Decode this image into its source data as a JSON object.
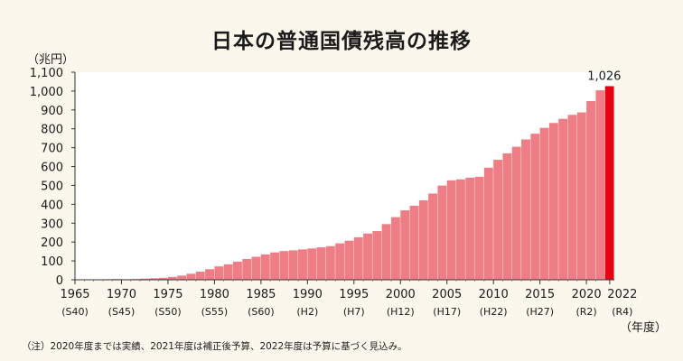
{
  "title": "日本の普通国債残高の推移",
  "unit_label": "（兆円）",
  "note": "（注）2020年度までは実績、2021年度は補正後予算、2022年度は予算に基づく見込み。",
  "colors": {
    "bar": "#ef7d86",
    "highlight": "#e50012",
    "background": "#fbf7ec",
    "plot": "#ffffff"
  },
  "chart_data": {
    "type": "bar",
    "title": "日本の普通国債残高の推移",
    "ylabel": "（兆円）",
    "xlabel": "（年度）",
    "ylim": [
      0,
      1100
    ],
    "ytick_labels": [
      "0",
      "100",
      "200",
      "300",
      "400",
      "500",
      "600",
      "700",
      "800",
      "900",
      "1,000",
      "1,100"
    ],
    "xtick_years": [
      "1965",
      "1970",
      "1975",
      "1980",
      "1985",
      "1990",
      "1995",
      "2000",
      "2005",
      "2010",
      "2015",
      "2020",
      "2022"
    ],
    "xtick_eras": [
      "(S40)",
      "(S45)",
      "(S50)",
      "(S55)",
      "(S60)",
      "(H2)",
      "(H7)",
      "(H12)",
      "(H17)",
      "(H22)",
      "(H27)",
      "(R2)",
      "(R4)"
    ],
    "categories": [
      1965,
      1966,
      1967,
      1968,
      1969,
      1970,
      1971,
      1972,
      1973,
      1974,
      1975,
      1976,
      1977,
      1978,
      1979,
      1980,
      1981,
      1982,
      1983,
      1984,
      1985,
      1986,
      1987,
      1988,
      1989,
      1990,
      1991,
      1992,
      1993,
      1994,
      1995,
      1996,
      1997,
      1998,
      1999,
      2000,
      2001,
      2002,
      2003,
      2004,
      2005,
      2006,
      2007,
      2008,
      2009,
      2010,
      2011,
      2012,
      2013,
      2014,
      2015,
      2016,
      2017,
      2018,
      2019,
      2020,
      2021,
      2022
    ],
    "values": [
      0,
      1,
      2,
      3,
      4,
      3,
      4,
      6,
      8,
      10,
      15,
      22,
      32,
      43,
      56,
      71,
      82,
      96,
      110,
      122,
      134,
      145,
      152,
      156,
      161,
      166,
      172,
      178,
      193,
      207,
      225,
      245,
      258,
      295,
      332,
      368,
      392,
      421,
      457,
      499,
      527,
      532,
      541,
      546,
      594,
      636,
      670,
      705,
      744,
      774,
      805,
      831,
      853,
      874,
      887,
      947,
      1004,
      1026
    ],
    "highlight": {
      "category": 2022,
      "value_label": "1,026"
    }
  },
  "xaxis_suffix": "（年度）"
}
